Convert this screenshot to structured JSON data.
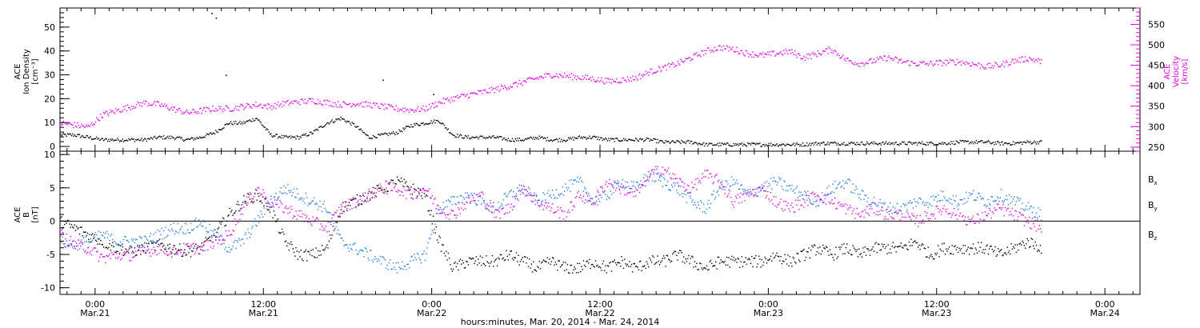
{
  "figure": {
    "xlabel": "hours:minutes, Mar. 20, 2014 - Mar. 24, 2014",
    "x_ticks": [
      {
        "hour": 0,
        "time": "0:00",
        "date": "Mar.21"
      },
      {
        "hour": 12,
        "time": "12:00",
        "date": "Mar.21"
      },
      {
        "hour": 24,
        "time": "0:00",
        "date": "Mar.22"
      },
      {
        "hour": 36,
        "time": "12:00",
        "date": "Mar.22"
      },
      {
        "hour": 48,
        "time": "0:00",
        "date": "Mar.23"
      },
      {
        "hour": 60,
        "time": "12:00",
        "date": "Mar.23"
      },
      {
        "hour": 72,
        "time": "0:00",
        "date": "Mar.24"
      }
    ],
    "xlim_hours_from_Mar21_0000": [
      -2.5,
      74.5
    ]
  },
  "chart_data": [
    {
      "type": "scatter",
      "title": "",
      "panel": "top",
      "left_axis": {
        "label_lines": [
          "ACE",
          "Ion Density",
          "[cm⁻³]"
        ],
        "ylim": [
          -2,
          58
        ],
        "ticks": [
          0,
          10,
          20,
          30,
          40,
          50
        ],
        "color": "#000000"
      },
      "right_axis": {
        "label_lines": [
          "ACE",
          "Velocity",
          "[km/s]"
        ],
        "ylim": [
          240,
          590
        ],
        "ticks": [
          250,
          300,
          350,
          400,
          450,
          500,
          550
        ],
        "color": "#e600e6"
      },
      "series": [
        {
          "axis": "left",
          "color": "#000000",
          "x": [
            -2.5,
            -1.5,
            -0.5,
            0.5,
            1.5,
            2.5,
            3.5,
            4.5,
            5.5,
            6.5,
            7.5,
            8.5,
            9.5,
            10.5,
            11.5,
            12.5,
            13.5,
            14.5,
            15.5,
            16.5,
            17.5,
            18.5,
            19.5,
            20.5,
            21.5,
            22.5,
            23.5,
            24.5,
            25.5,
            26.5,
            27.5,
            28.5,
            29.5,
            30.5,
            31.5,
            32.5,
            33.5,
            34.5,
            35.5,
            36.5,
            37.5,
            38.5,
            39.5,
            40.5,
            41.5,
            42.5,
            43.5,
            44.5,
            45.5,
            46.5,
            47.5,
            48.5,
            49.5,
            50.5,
            51.5,
            52.5,
            53.5,
            54.5,
            55.5,
            56.5,
            57.5,
            58.5,
            59.5,
            60.5,
            61.5,
            62.5,
            63.5,
            64.5,
            65.5,
            66.5,
            67.5
          ],
          "y": [
            5,
            5,
            4,
            3,
            3,
            3,
            3,
            4,
            4,
            3,
            4,
            6,
            10,
            10,
            12,
            5,
            4,
            4,
            6,
            10,
            12,
            9,
            4,
            5,
            6,
            9,
            10,
            11,
            5,
            4,
            4,
            4,
            3,
            3,
            4,
            3,
            3,
            4,
            4,
            3,
            3,
            3,
            3,
            2,
            2,
            2,
            1,
            1,
            1,
            1,
            1,
            1,
            1,
            1,
            1.5,
            1.5,
            1.5,
            1.5,
            1.5,
            1.5,
            1.5,
            1.5,
            1.5,
            1.5,
            2,
            2,
            2,
            1.5,
            1.5,
            2,
            2
          ]
        },
        {
          "axis": "right",
          "color": "#e600e6",
          "x": [
            -2.5,
            -1.5,
            -0.5,
            0.5,
            1.5,
            2.5,
            3.5,
            4.5,
            5.5,
            6.5,
            7.5,
            8.5,
            9.5,
            10.5,
            11.5,
            12.5,
            13.5,
            14.5,
            15.5,
            16.5,
            17.5,
            18.5,
            19.5,
            20.5,
            21.5,
            22.5,
            23.5,
            24.5,
            25.5,
            26.5,
            27.5,
            28.5,
            29.5,
            30.5,
            31.5,
            32.5,
            33.5,
            34.5,
            35.5,
            36.5,
            37.5,
            38.5,
            39.5,
            40.5,
            41.5,
            42.5,
            43.5,
            44.5,
            45.5,
            46.5,
            47.5,
            48.5,
            49.5,
            50.5,
            51.5,
            52.5,
            53.5,
            54.5,
            55.5,
            56.5,
            57.5,
            58.5,
            59.5,
            60.5,
            61.5,
            62.5,
            63.5,
            64.5,
            65.5,
            66.5,
            67.5
          ],
          "y": [
            310,
            305,
            300,
            330,
            340,
            350,
            360,
            355,
            345,
            335,
            340,
            345,
            345,
            350,
            355,
            350,
            358,
            362,
            365,
            360,
            355,
            358,
            355,
            350,
            345,
            342,
            345,
            360,
            370,
            378,
            385,
            392,
            400,
            410,
            420,
            428,
            425,
            422,
            418,
            412,
            415,
            420,
            435,
            445,
            455,
            470,
            485,
            495,
            490,
            480,
            475,
            480,
            485,
            470,
            480,
            490,
            465,
            455,
            462,
            470,
            460,
            455,
            455,
            458,
            460,
            455,
            448,
            452,
            462,
            468,
            460
          ]
        },
        {
          "axis": "left",
          "color": "#000000",
          "points_x": [
            8.3,
            8.6,
            9.3,
            20.5,
            24.1
          ],
          "points_y": [
            56,
            54,
            30,
            28,
            22
          ],
          "note_kind": "outliers"
        }
      ]
    },
    {
      "type": "scatter",
      "title": "",
      "panel": "bottom",
      "left_axis": {
        "label_lines": [
          "ACE",
          "B",
          "[nT]"
        ],
        "ylim": [
          -11,
          10.5
        ],
        "ticks": [
          -10,
          -5,
          0,
          5,
          10
        ]
      },
      "zero_line": true,
      "legend_placement": "right",
      "series": [
        {
          "name": "Bx",
          "name_sub": "x",
          "name_base": "B",
          "color": "#000000",
          "x": [
            -2.5,
            -1.5,
            -0.5,
            0.5,
            1.5,
            2.5,
            3.5,
            4.5,
            5.5,
            6.5,
            7.5,
            8.5,
            9.5,
            10.5,
            11.5,
            12.5,
            13.5,
            14.5,
            15.5,
            16.5,
            17.5,
            18.5,
            19.5,
            20.5,
            21.5,
            22.5,
            23.5,
            24.5,
            25.5,
            26.5,
            27.5,
            28.5,
            29.5,
            30.5,
            31.5,
            32.5,
            33.5,
            34.5,
            35.5,
            36.5,
            37.5,
            38.5,
            39.5,
            40.5,
            41.5,
            42.5,
            43.5,
            44.5,
            45.5,
            46.5,
            47.5,
            48.5,
            49.5,
            50.5,
            51.5,
            52.5,
            53.5,
            54.5,
            55.5,
            56.5,
            57.5,
            58.5,
            59.5,
            60.5,
            61.5,
            62.5,
            63.5,
            64.5,
            65.5,
            66.5,
            67.5
          ],
          "y": [
            0,
            -1,
            -2,
            -3,
            -4,
            -4.5,
            -4,
            -3.5,
            -4,
            -4.5,
            -4,
            -2,
            1,
            3,
            4,
            2,
            -3,
            -5,
            -5,
            -4,
            2,
            3,
            4,
            5,
            6,
            5,
            4,
            -3,
            -7,
            -6,
            -6,
            -6,
            -5,
            -6,
            -7,
            -6,
            -7,
            -7,
            -6,
            -7,
            -6,
            -7,
            -6,
            -6,
            -5,
            -6,
            -7,
            -6,
            -6,
            -6,
            -6,
            -5,
            -6,
            -5,
            -4,
            -5,
            -4,
            -5,
            -4,
            -4,
            -4,
            -3,
            -5,
            -4,
            -4,
            -4,
            -4,
            -5,
            -4,
            -3,
            -4
          ]
        },
        {
          "name": "By",
          "name_sub": "y",
          "name_base": "B",
          "color": "#1c7ee0",
          "x": [
            -2.5,
            -1.5,
            -0.5,
            0.5,
            1.5,
            2.5,
            3.5,
            4.5,
            5.5,
            6.5,
            7.5,
            8.5,
            9.5,
            10.5,
            11.5,
            12.5,
            13.5,
            14.5,
            15.5,
            16.5,
            17.5,
            18.5,
            19.5,
            20.5,
            21.5,
            22.5,
            23.5,
            24.5,
            25.5,
            26.5,
            27.5,
            28.5,
            29.5,
            30.5,
            31.5,
            32.5,
            33.5,
            34.5,
            35.5,
            36.5,
            37.5,
            38.5,
            39.5,
            40.5,
            41.5,
            42.5,
            43.5,
            44.5,
            45.5,
            46.5,
            47.5,
            48.5,
            49.5,
            50.5,
            51.5,
            52.5,
            53.5,
            54.5,
            55.5,
            56.5,
            57.5,
            58.5,
            59.5,
            60.5,
            61.5,
            62.5,
            63.5,
            64.5,
            65.5,
            66.5,
            67.5
          ],
          "y": [
            -3,
            -3.5,
            -3,
            -2,
            -3,
            -3,
            -3,
            -2,
            -1,
            -1,
            0,
            -2,
            -4,
            -3,
            0,
            3,
            5,
            4,
            3,
            2,
            -3,
            -4,
            -5,
            -6,
            -7,
            -6,
            -5,
            2,
            3,
            4,
            3,
            2,
            4,
            5,
            3,
            4,
            5,
            6,
            3,
            4,
            6,
            5,
            7,
            6,
            5,
            3,
            2,
            5,
            6,
            4,
            5,
            6,
            5,
            4,
            3,
            5,
            6,
            4,
            3,
            2,
            2,
            3,
            3,
            4,
            3,
            4,
            3,
            4,
            3,
            2,
            1
          ]
        },
        {
          "name": "Bz",
          "name_sub": "z",
          "name_base": "B",
          "color": "#e600e6",
          "x": [
            -2.5,
            -1.5,
            -0.5,
            0.5,
            1.5,
            2.5,
            3.5,
            4.5,
            5.5,
            6.5,
            7.5,
            8.5,
            9.5,
            10.5,
            11.5,
            12.5,
            13.5,
            14.5,
            15.5,
            16.5,
            17.5,
            18.5,
            19.5,
            20.5,
            21.5,
            22.5,
            23.5,
            24.5,
            25.5,
            26.5,
            27.5,
            28.5,
            29.5,
            30.5,
            31.5,
            32.5,
            33.5,
            34.5,
            35.5,
            36.5,
            37.5,
            38.5,
            39.5,
            40.5,
            41.5,
            42.5,
            43.5,
            44.5,
            45.5,
            46.5,
            47.5,
            48.5,
            49.5,
            50.5,
            51.5,
            52.5,
            53.5,
            54.5,
            55.5,
            56.5,
            57.5,
            58.5,
            59.5,
            60.5,
            61.5,
            62.5,
            63.5,
            64.5,
            65.5,
            66.5,
            67.5
          ],
          "y": [
            -2,
            -3.5,
            -4,
            -5.5,
            -5,
            -5,
            -4.5,
            -4,
            -4.5,
            -4,
            -4,
            -3,
            -2,
            2,
            5,
            3,
            2,
            1,
            0,
            -1,
            2,
            3,
            4,
            5,
            5,
            4,
            5,
            2,
            1,
            3,
            4,
            1,
            2,
            5,
            3,
            2,
            1,
            4,
            3,
            6,
            5,
            4,
            7,
            8,
            6,
            5,
            7,
            6,
            3,
            4,
            5,
            3,
            2,
            3,
            4,
            3,
            2,
            1,
            2,
            1,
            1,
            0,
            1,
            2,
            1,
            0,
            1,
            2,
            1,
            0,
            -1
          ]
        }
      ]
    }
  ]
}
